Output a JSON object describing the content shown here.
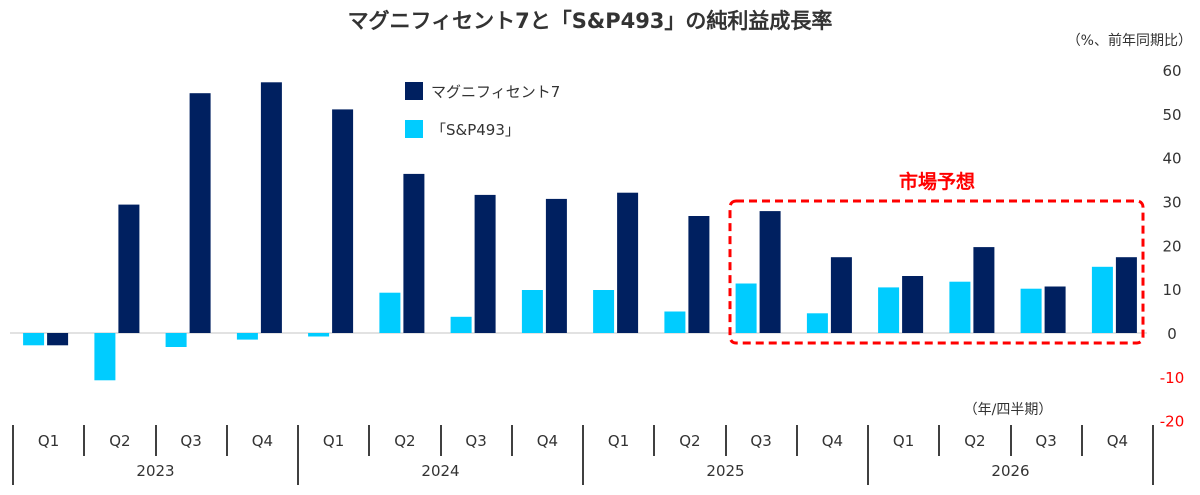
{
  "chart_data": {
    "type": "bar",
    "title": "マグニフィセント7と「S&P493」の純利益成長率",
    "unit_label": "（%、前年同期比）",
    "xunit_label": "（年/四半期）",
    "annotation": "市場予想",
    "quarters": [
      "Q1",
      "Q2",
      "Q3",
      "Q4",
      "Q1",
      "Q2",
      "Q3",
      "Q4",
      "Q1",
      "Q2",
      "Q3",
      "Q4",
      "Q1",
      "Q2",
      "Q3",
      "Q4"
    ],
    "years": [
      "2023",
      "2024",
      "2025",
      "2026"
    ],
    "ylim": [
      -20,
      60
    ],
    "yticks": [
      "-20",
      "-10",
      "0",
      "10",
      "20",
      "30",
      "40",
      "50",
      "60"
    ],
    "forecast_from_index": 10,
    "series": [
      {
        "name": "「S&P493」",
        "color": "#00ccff",
        "values": [
          -2.8,
          -10.8,
          -3.2,
          -1.5,
          -0.8,
          9.2,
          3.7,
          9.8,
          9.8,
          4.9,
          11.3,
          4.5,
          10.4,
          11.7,
          10.1,
          15.1
        ]
      },
      {
        "name": "マグニフィセント7",
        "color": "#002060",
        "values": [
          -2.8,
          29.3,
          54.7,
          57.2,
          51.0,
          36.3,
          31.5,
          30.6,
          32.0,
          26.7,
          27.8,
          17.3,
          13.0,
          19.6,
          10.6,
          17.3
        ]
      }
    ],
    "colors": {
      "axis": "#000000",
      "zero_line": "#d9d9d9",
      "annotation": "#ff0000",
      "text": "#333333"
    }
  }
}
